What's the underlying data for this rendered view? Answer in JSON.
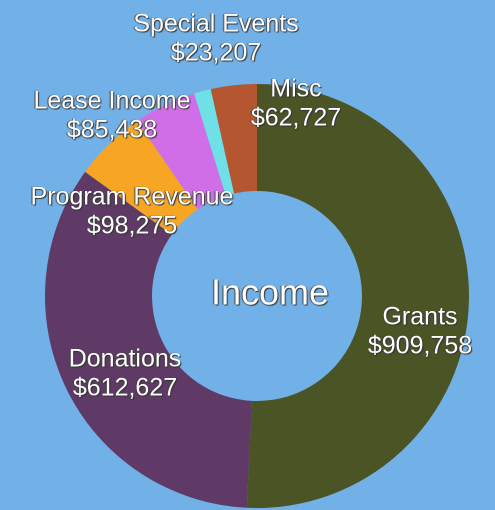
{
  "chart_data": {
    "type": "donut",
    "center_text": "Income",
    "categories": [
      "Grants",
      "Donations",
      "Program Revenue",
      "Lease Income",
      "Special Events",
      "Misc"
    ],
    "values": [
      909758,
      612627,
      98275,
      85438,
      23207,
      62727
    ],
    "value_labels": [
      "$909,758",
      "$612,627",
      "$98,275",
      "$85,438",
      "$23,207",
      "$62,727"
    ],
    "colors": [
      "#4b5424",
      "#5f3a66",
      "#f6a623",
      "#d06ee8",
      "#6fe0e6",
      "#b4562f"
    ]
  }
}
